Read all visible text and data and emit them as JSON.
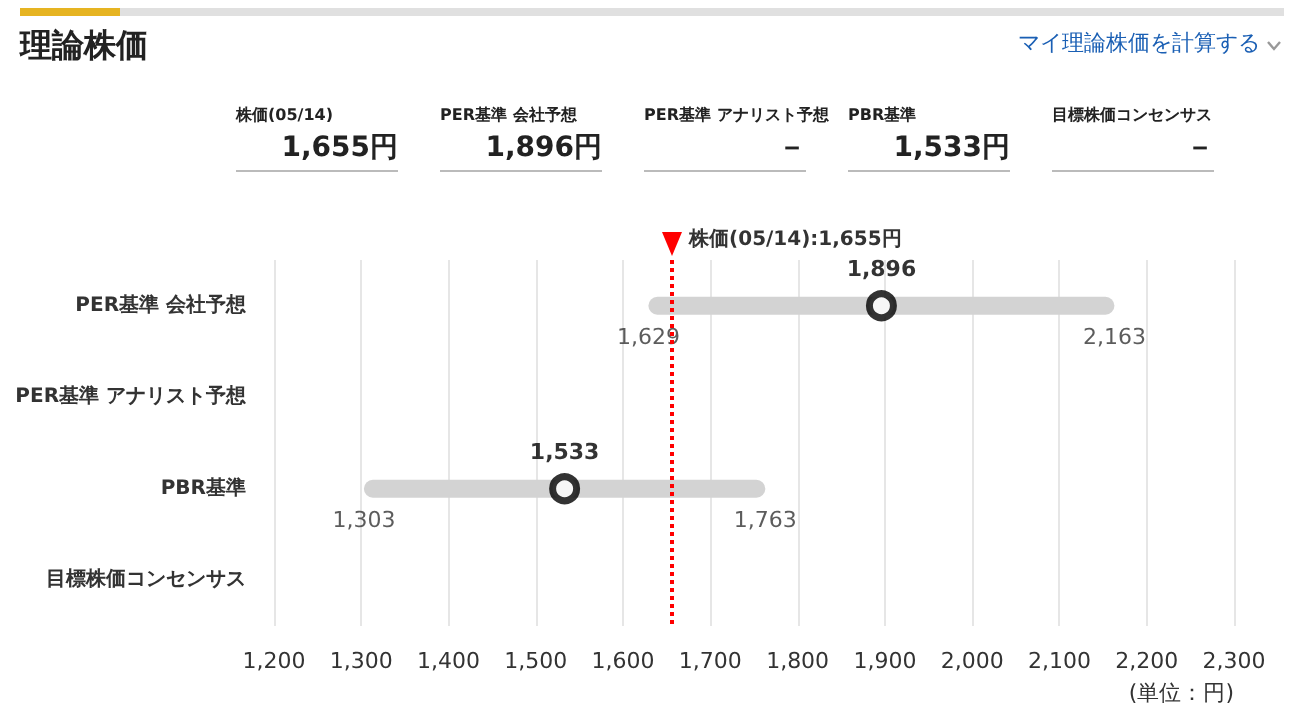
{
  "chart_data": {
    "type": "bar",
    "orientation": "horizontal",
    "title": "理論株価",
    "categories": [
      "PER基準 会社予想",
      "PER基準 アナリスト予想",
      "PBR基準",
      "目標株価コンセンサス"
    ],
    "series": [
      {
        "type": "bar",
        "color": "#d3d3d3",
        "base": [
          1629,
          null,
          1303,
          null
        ],
        "values": [
          534,
          null,
          460,
          null
        ]
      },
      {
        "type": "scatter",
        "color": "#000000",
        "marker": "circle",
        "values": [
          1896,
          null,
          1533,
          null
        ],
        "value_labels": [
          "1,896",
          null,
          "1,533",
          null
        ]
      }
    ],
    "xlim": [
      1200,
      2300
    ],
    "xticks": [
      {
        "value": 1200,
        "label": "1,200"
      },
      {
        "value": 1300,
        "label": "1,300"
      },
      {
        "value": 1400,
        "label": "1,400"
      },
      {
        "value": 1500,
        "label": "1,500"
      },
      {
        "value": 1600,
        "label": "1,600"
      },
      {
        "value": 1700,
        "label": "1,700"
      },
      {
        "value": 1800,
        "label": "1,800"
      },
      {
        "value": 1900,
        "label": "1,900"
      },
      {
        "value": 2000,
        "label": "2,000"
      },
      {
        "value": 2100,
        "label": "2,100"
      },
      {
        "value": 2200,
        "label": "2,200"
      },
      {
        "value": 2300,
        "label": "2,300"
      }
    ],
    "xlabel": "(単位：円)",
    "grid": "x",
    "ref_lines": [
      {
        "axis": "x",
        "value": 1655,
        "label": "株価(05/14):1,655円",
        "color": "#ff0000",
        "line_style": "dotted"
      }
    ],
    "annotations": [
      "マイ理論株価を計算する",
      "株価(05/14)",
      "1,655円",
      "PER基準 会社予想",
      "1,896円",
      "PER基準 アナリスト予想",
      "－",
      "PBR基準",
      "1,533円",
      "目標株価コンセンサス",
      "－",
      {
        "text": "1,629",
        "x": 1629,
        "y": "PER基準 会社予想"
      },
      {
        "text": "2,163",
        "x": 2163,
        "y": "PER基準 会社予想"
      },
      {
        "text": "1,303",
        "x": 1303,
        "y": "PBR基準"
      },
      {
        "text": "1,763",
        "x": 1763,
        "y": "PBR基準"
      }
    ]
  }
}
